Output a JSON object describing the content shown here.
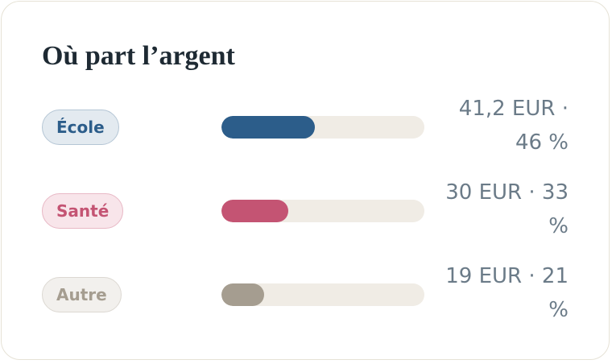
{
  "chart_data": {
    "type": "bar",
    "title": "Où part l’argent",
    "categories": [
      "École",
      "Santé",
      "Autre"
    ],
    "values": [
      46,
      33,
      21
    ],
    "value_labels": [
      "41,2 EUR · 46 %",
      "30 EUR · 33 %",
      "19 EUR · 21 %"
    ],
    "colors": [
      "#2c5d8a",
      "#c45473",
      "#a59d90"
    ],
    "xlim": [
      0,
      100
    ]
  }
}
